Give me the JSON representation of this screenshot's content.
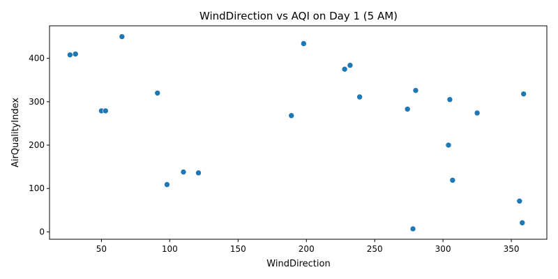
{
  "chart_data": {
    "type": "scatter",
    "title": "WindDirection vs AQI on Day 1 (5 AM)",
    "xlabel": "WindDirection",
    "ylabel": "AirQualityIndex",
    "xlim": [
      12,
      376
    ],
    "ylim": [
      -17,
      475
    ],
    "xticks": [
      50,
      100,
      150,
      200,
      250,
      300,
      350
    ],
    "yticks": [
      0,
      100,
      200,
      300,
      400
    ],
    "grid": false,
    "legend": "none",
    "marker_color": "#1f77b4",
    "points": [
      {
        "x": 27,
        "y": 408
      },
      {
        "x": 31,
        "y": 410
      },
      {
        "x": 50,
        "y": 279
      },
      {
        "x": 53,
        "y": 279
      },
      {
        "x": 65,
        "y": 450
      },
      {
        "x": 91,
        "y": 320
      },
      {
        "x": 98,
        "y": 109
      },
      {
        "x": 110,
        "y": 138
      },
      {
        "x": 121,
        "y": 136
      },
      {
        "x": 189,
        "y": 268
      },
      {
        "x": 198,
        "y": 434
      },
      {
        "x": 228,
        "y": 375
      },
      {
        "x": 232,
        "y": 384
      },
      {
        "x": 239,
        "y": 311
      },
      {
        "x": 274,
        "y": 283
      },
      {
        "x": 278,
        "y": 7
      },
      {
        "x": 280,
        "y": 326
      },
      {
        "x": 304,
        "y": 200
      },
      {
        "x": 305,
        "y": 305
      },
      {
        "x": 307,
        "y": 119
      },
      {
        "x": 325,
        "y": 274
      },
      {
        "x": 356,
        "y": 71
      },
      {
        "x": 358,
        "y": 21
      },
      {
        "x": 359,
        "y": 318
      }
    ]
  }
}
